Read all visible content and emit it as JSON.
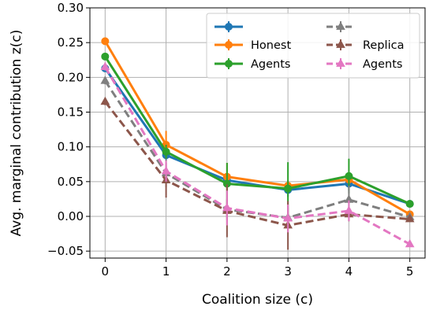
{
  "chart_data": {
    "type": "line",
    "xlabel": "Coalition size (c)",
    "ylabel": "Avg. marginal contribution z(c)",
    "xlim": [
      -0.25,
      5.25
    ],
    "ylim": [
      -0.06,
      0.3
    ],
    "x_ticks": [
      "0",
      "1",
      "2",
      "3",
      "4",
      "5"
    ],
    "y_ticks": [
      "−0.05",
      "0.00",
      "0.05",
      "0.10",
      "0.15",
      "0.20",
      "0.25",
      "0.30"
    ],
    "y_tick_values": [
      -0.05,
      0.0,
      0.05,
      0.1,
      0.15,
      0.2,
      0.25,
      0.3
    ],
    "grid": true,
    "legend_position": "top-right",
    "legend_columns": 2,
    "x": [
      0,
      1,
      2,
      3,
      4,
      5
    ],
    "series": [
      {
        "name": "",
        "color": "#1f77b4",
        "style": "solid",
        "marker": "circle",
        "values": [
          0.213,
          0.088,
          0.052,
          0.038,
          0.047,
          0.018
        ],
        "errors": [
          0.005,
          0.007,
          0.01,
          0.01,
          0.01,
          0.004
        ]
      },
      {
        "name": "Honest",
        "color": "#ff7f0e",
        "style": "solid",
        "marker": "circle",
        "values": [
          0.252,
          0.103,
          0.057,
          0.044,
          0.053,
          0.003
        ],
        "errors": [
          0.005,
          0.02,
          0.02,
          0.008,
          0.01,
          0.004
        ]
      },
      {
        "name": "Agents",
        "color": "#2ca02c",
        "style": "solid",
        "marker": "circle",
        "values": [
          0.23,
          0.093,
          0.047,
          0.04,
          0.058,
          0.018
        ],
        "errors": [
          0.005,
          0.01,
          0.03,
          0.038,
          0.025,
          0.004
        ]
      },
      {
        "name": "",
        "color": "#7f7f7f",
        "style": "dashed",
        "marker": "triangle",
        "values": [
          0.195,
          0.062,
          0.01,
          -0.002,
          0.024,
          -0.001
        ],
        "errors": [
          0.005,
          0.02,
          0.015,
          0.015,
          0.02,
          0.004
        ]
      },
      {
        "name": "Replica",
        "color": "#8c564b",
        "style": "dashed",
        "marker": "triangle",
        "values": [
          0.165,
          0.052,
          0.008,
          -0.013,
          0.003,
          -0.004
        ],
        "errors": [
          0.005,
          0.025,
          0.038,
          0.035,
          0.01,
          0.004
        ]
      },
      {
        "name": "Agents",
        "color": "#e377c2",
        "style": "dashed",
        "marker": "triangle",
        "values": [
          0.215,
          0.065,
          0.012,
          -0.003,
          0.008,
          -0.04
        ],
        "errors": [
          0.005,
          0.015,
          0.025,
          0.02,
          0.015,
          0.004
        ]
      }
    ]
  }
}
